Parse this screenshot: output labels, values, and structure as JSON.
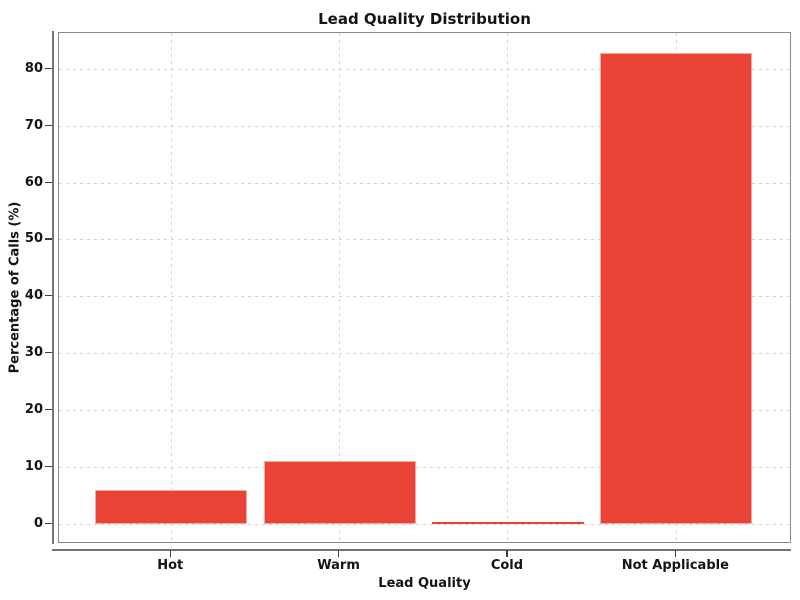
{
  "figure": {
    "title": "Lead Quality Distribution",
    "xlabel": "Lead Quality",
    "ylabel": "Percentage of Calls (%)"
  },
  "chart_data": {
    "type": "bar",
    "title": "Lead Quality Distribution",
    "xlabel": "Lead Quality",
    "ylabel": "Percentage of Calls (%)",
    "categories": [
      "Hot",
      "Warm",
      "Cold",
      "Not Applicable"
    ],
    "values": [
      6.0,
      11.1,
      0.3,
      82.8
    ],
    "yticks": [
      0,
      10,
      20,
      30,
      40,
      50,
      60,
      70,
      80
    ],
    "ylim": [
      -3.5,
      86.4
    ],
    "grid": true,
    "grid_style": "dashed",
    "legend": "none",
    "bar_color": "#e84334",
    "bar_edge_color": "rgba(255,255,255,0.55)",
    "grid_color": "#d2d2d2",
    "frame_color": "#8a8a8a",
    "spine_color": "#757575",
    "text_color": "#141414"
  }
}
